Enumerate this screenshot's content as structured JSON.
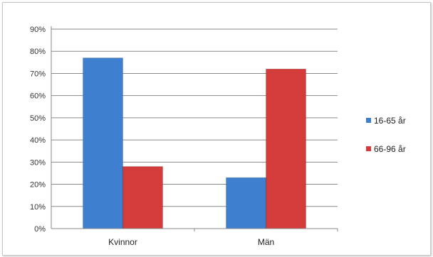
{
  "chart_data": {
    "type": "bar",
    "categories": [
      "Kvinnor",
      "Män"
    ],
    "series": [
      {
        "name": "16-65 år",
        "values": [
          77,
          23
        ],
        "color": "#3f7fcf"
      },
      {
        "name": "66-96 år",
        "values": [
          28,
          72
        ],
        "color": "#d43c3c"
      }
    ],
    "ylim": [
      0,
      90
    ],
    "yticks": [
      0,
      10,
      20,
      30,
      40,
      50,
      60,
      70,
      80,
      90
    ],
    "ytick_labels": [
      "0%",
      "10%",
      "20%",
      "30%",
      "40%",
      "50%",
      "60%",
      "70%",
      "80%",
      "90%"
    ],
    "title": "",
    "xlabel": "",
    "ylabel": "",
    "grid": true,
    "legend_position": "right"
  }
}
